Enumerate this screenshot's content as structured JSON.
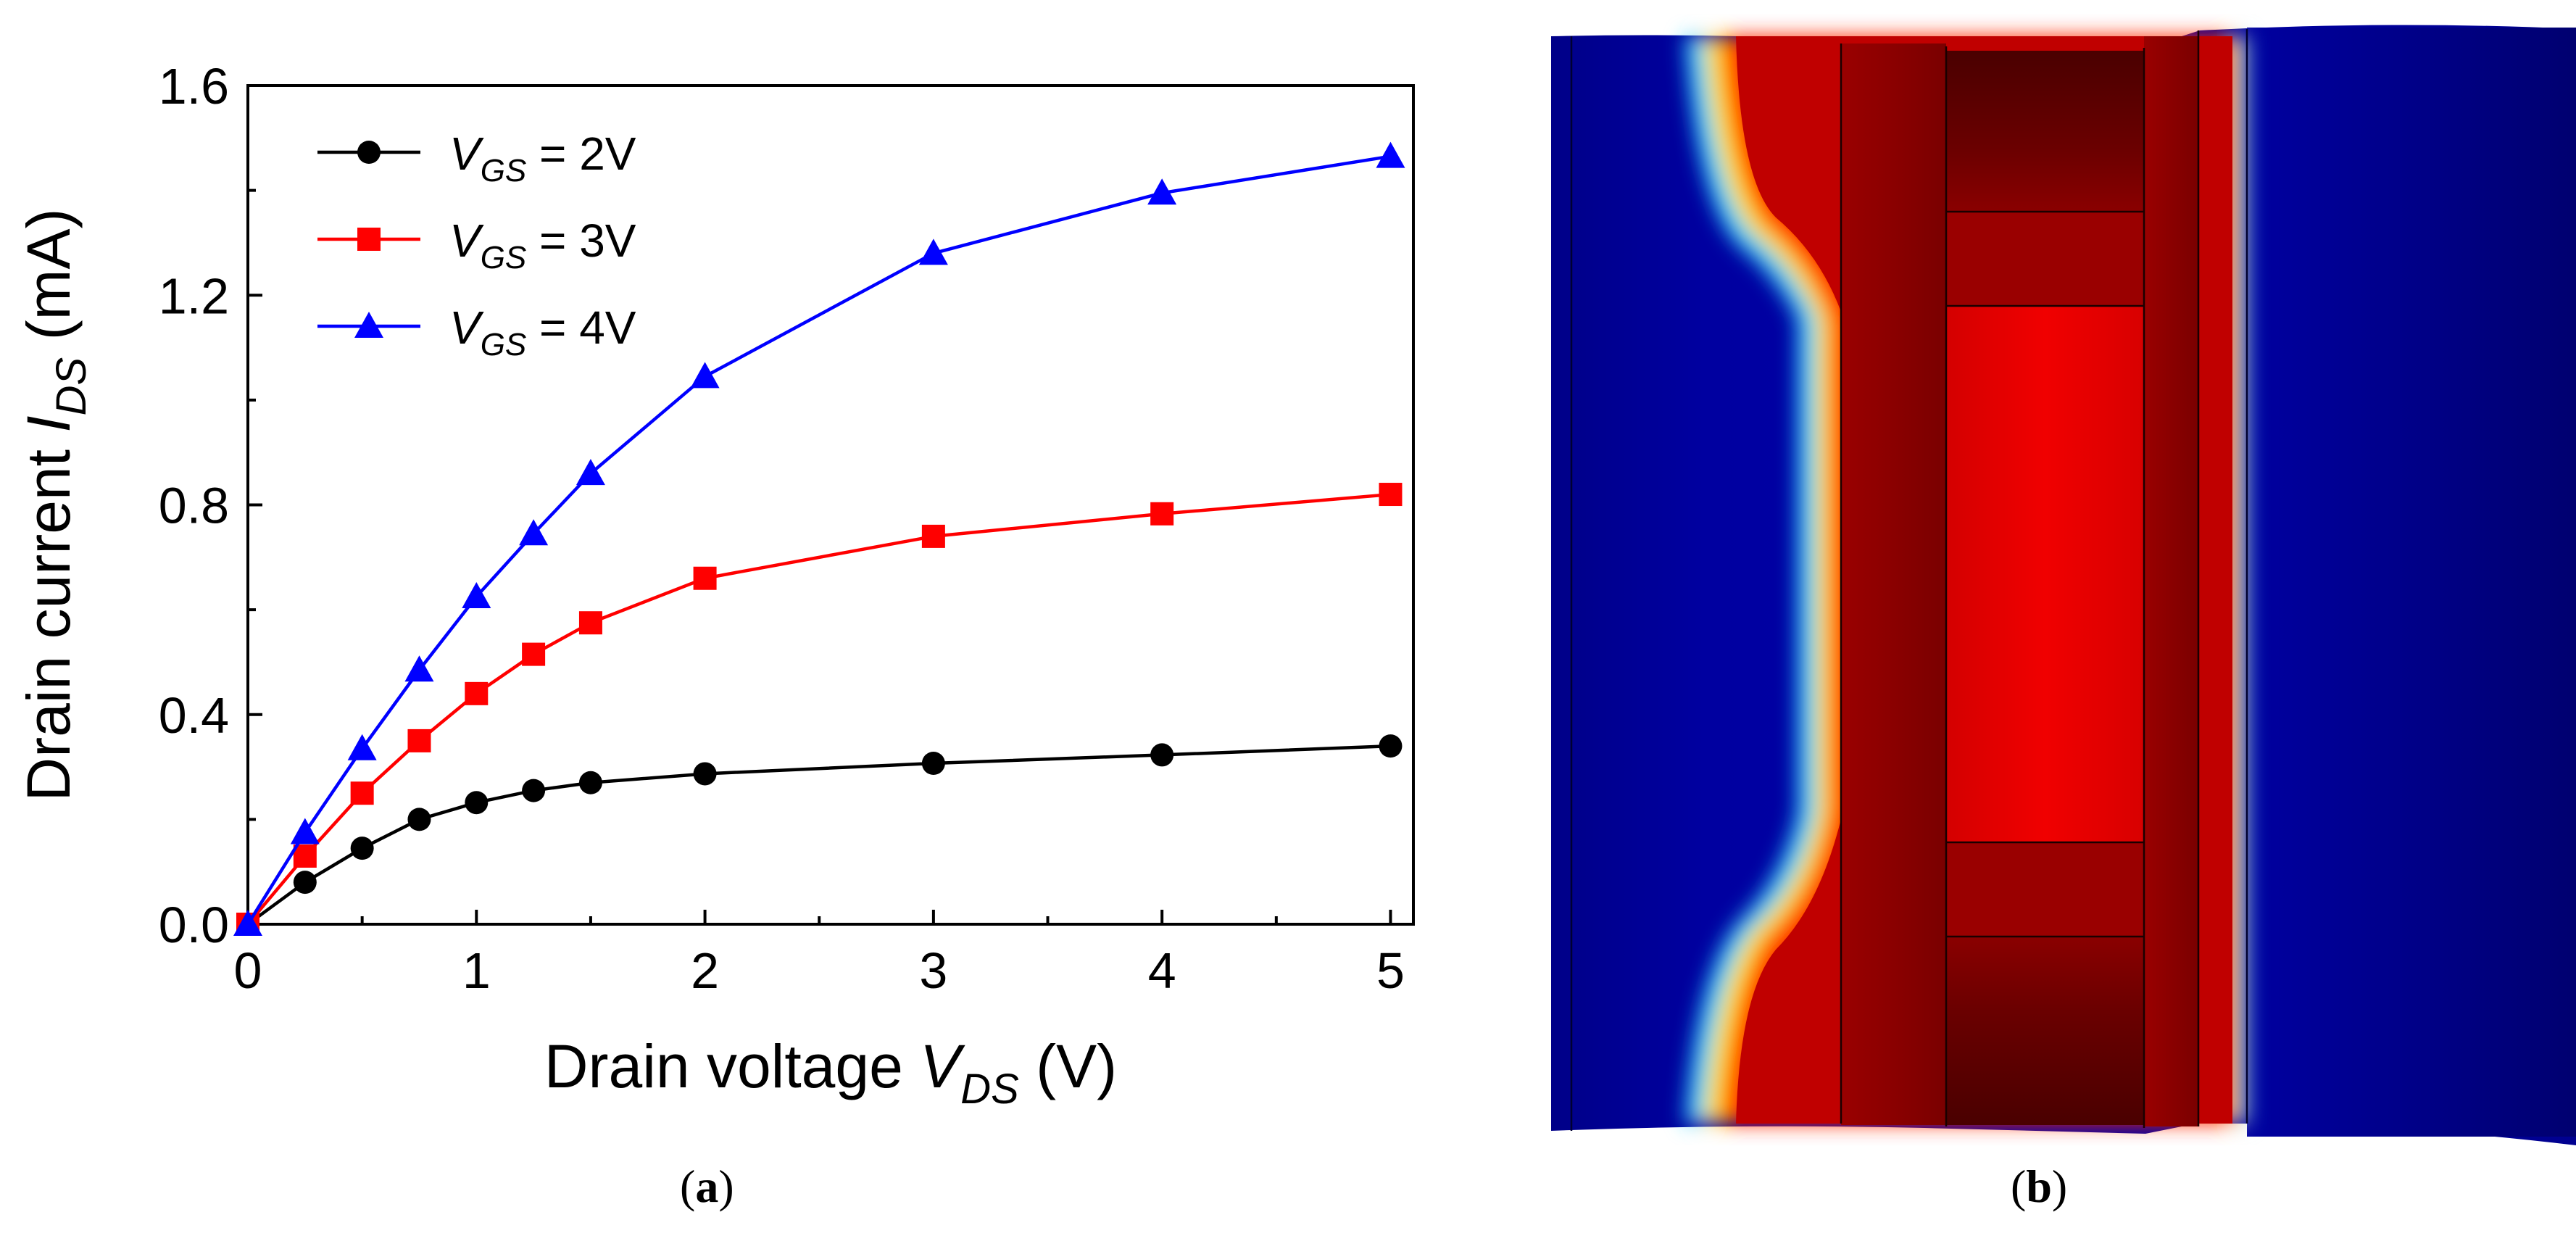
{
  "chart_data": {
    "type": "line",
    "xlabel": {
      "prefix": "Drain voltage ",
      "var": "V",
      "sub": "DS",
      "suffix": " (V)"
    },
    "ylabel": {
      "prefix": "Drain current ",
      "var": "I",
      "sub": "DS",
      "suffix": " (mA)"
    },
    "xlim": [
      0,
      5.1
    ],
    "ylim": [
      0,
      1.6
    ],
    "xticks": [
      0,
      1,
      2,
      3,
      4,
      5
    ],
    "yticks": [
      0.0,
      0.4,
      0.8,
      1.2,
      1.6
    ],
    "xtick_labels": [
      "0",
      "1",
      "2",
      "3",
      "4",
      "5"
    ],
    "ytick_labels": [
      "0.0",
      "0.4",
      "0.8",
      "1.2",
      "1.6"
    ],
    "legend_position": "top-left",
    "series": [
      {
        "name": "VGS = 2V",
        "var": "V",
        "sub": "GS",
        "value_text": " = 2V",
        "color": "#000000",
        "marker": "circle",
        "x": [
          0,
          0.25,
          0.5,
          0.75,
          1.0,
          1.25,
          1.5,
          2.0,
          3.0,
          4.0,
          5.0
        ],
        "y": [
          0.0,
          0.08,
          0.145,
          0.2,
          0.232,
          0.255,
          0.27,
          0.287,
          0.307,
          0.323,
          0.34
        ]
      },
      {
        "name": "VGS = 3V",
        "var": "V",
        "sub": "GS",
        "value_text": " = 3V",
        "color": "#ff0000",
        "marker": "square",
        "x": [
          0,
          0.25,
          0.5,
          0.75,
          1.0,
          1.25,
          1.5,
          2.0,
          3.0,
          4.0,
          5.0
        ],
        "y": [
          0.0,
          0.13,
          0.25,
          0.35,
          0.44,
          0.515,
          0.575,
          0.66,
          0.74,
          0.783,
          0.82
        ]
      },
      {
        "name": "VGS = 4V",
        "var": "V",
        "sub": "GS",
        "value_text": " = 4V",
        "color": "#0000ff",
        "marker": "triangle",
        "x": [
          0,
          0.25,
          0.5,
          0.75,
          1.0,
          1.25,
          1.5,
          2.0,
          3.0,
          4.0,
          5.0
        ],
        "y": [
          0.0,
          0.175,
          0.335,
          0.485,
          0.625,
          0.745,
          0.86,
          1.045,
          1.28,
          1.395,
          1.465
        ]
      }
    ]
  },
  "captions": {
    "a": "a",
    "b": "b"
  },
  "colors": {
    "deep_blue": "#00007a",
    "dark_red": "#7a0000",
    "red": "#e00000"
  }
}
